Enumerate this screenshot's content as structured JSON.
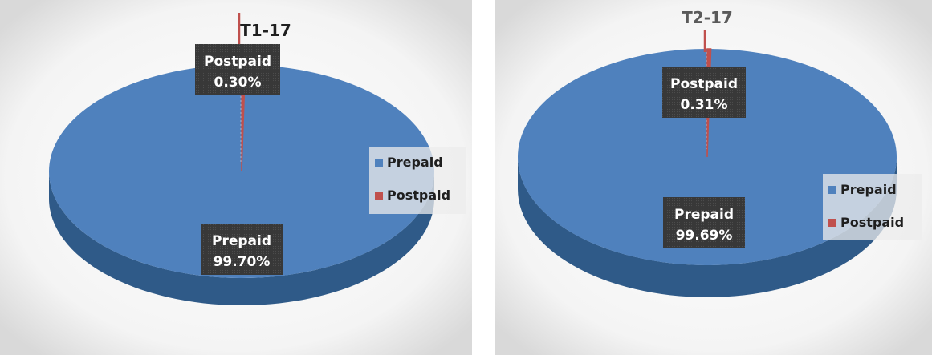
{
  "chart_data": [
    {
      "type": "pie",
      "title": "T1-17",
      "categories": [
        "Prepaid",
        "Postpaid"
      ],
      "values": [
        99.7,
        0.3
      ],
      "data_labels": [
        {
          "name": "Prepaid",
          "value": "99.70%"
        },
        {
          "name": "Postpaid",
          "value": "0.30%"
        }
      ],
      "legend": [
        "Prepaid",
        "Postpaid"
      ],
      "legend_position": "right",
      "style": "3d"
    },
    {
      "type": "pie",
      "title": "T2-17",
      "categories": [
        "Prepaid",
        "Postpaid"
      ],
      "values": [
        99.69,
        0.31
      ],
      "data_labels": [
        {
          "name": "Prepaid",
          "value": "99.69%"
        },
        {
          "name": "Postpaid",
          "value": "0.31%"
        }
      ],
      "legend": [
        "Prepaid",
        "Postpaid"
      ],
      "legend_position": "right",
      "style": "3d"
    }
  ],
  "colors": {
    "prepaid": "#4f81bd",
    "prepaid_side": "#2f5a88",
    "postpaid": "#c0504d",
    "label_box": "#3a3a3a",
    "label_text": "#ffffff",
    "title_text": "#1f1f1f",
    "legend_text": "#1f1f1f"
  }
}
